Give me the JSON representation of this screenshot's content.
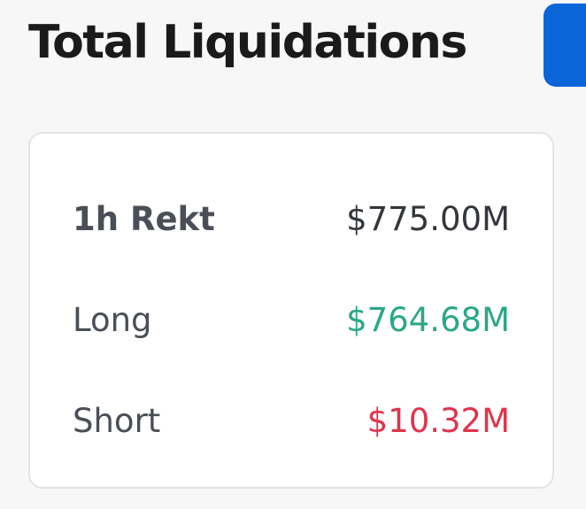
{
  "header": {
    "title": "Total Liquidations"
  },
  "card": {
    "rows": [
      {
        "label": "1h Rekt",
        "value": "$775.00M"
      },
      {
        "label": "Long",
        "value": "$764.68M"
      },
      {
        "label": "Short",
        "value": "$10.32M"
      }
    ]
  }
}
